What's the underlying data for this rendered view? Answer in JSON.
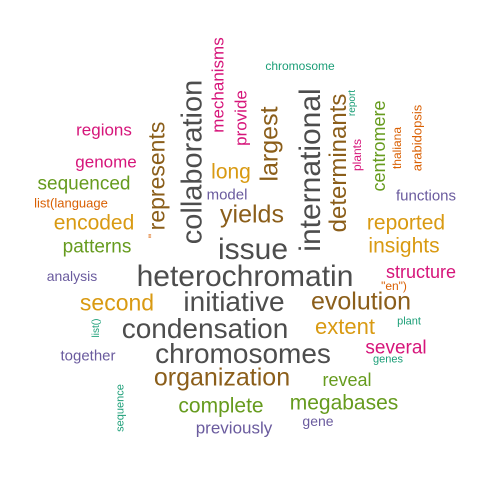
{
  "colors": {
    "dark": "#4d4d4d",
    "brown": "#8b5e1a",
    "olive": "#669b1e",
    "purple": "#6a5b9e",
    "magenta": "#d6157a",
    "orange": "#d99a12",
    "teal": "#1b9e77",
    "rust": "#d95f02"
  },
  "words": [
    {
      "text": "heterochromatin",
      "color": "dark"
    },
    {
      "text": "condensation",
      "color": "dark"
    },
    {
      "text": "chromosomes",
      "color": "dark"
    },
    {
      "text": "initiative",
      "color": "dark"
    },
    {
      "text": "issue",
      "color": "dark"
    },
    {
      "text": "collaboration",
      "color": "dark"
    },
    {
      "text": "international",
      "color": "dark"
    },
    {
      "text": "organization",
      "color": "brown"
    },
    {
      "text": "evolution",
      "color": "brown"
    },
    {
      "text": "determinants",
      "color": "brown"
    },
    {
      "text": "largest",
      "color": "brown"
    },
    {
      "text": "yields",
      "color": "brown"
    },
    {
      "text": "represents",
      "color": "brown"
    },
    {
      "text": "second",
      "color": "orange"
    },
    {
      "text": "extent",
      "color": "orange"
    },
    {
      "text": "reported",
      "color": "orange"
    },
    {
      "text": "insights",
      "color": "orange"
    },
    {
      "text": "encoded",
      "color": "orange"
    },
    {
      "text": "long",
      "color": "orange"
    },
    {
      "text": "complete",
      "color": "olive"
    },
    {
      "text": "megabases",
      "color": "olive"
    },
    {
      "text": "reveal",
      "color": "olive"
    },
    {
      "text": "patterns",
      "color": "olive"
    },
    {
      "text": "sequenced",
      "color": "olive"
    },
    {
      "text": "centromere",
      "color": "olive"
    },
    {
      "text": "several",
      "color": "magenta"
    },
    {
      "text": "structure",
      "color": "magenta"
    },
    {
      "text": "regions",
      "color": "magenta"
    },
    {
      "text": "genome",
      "color": "magenta"
    },
    {
      "text": "mechanisms",
      "color": "magenta"
    },
    {
      "text": "provide",
      "color": "magenta"
    },
    {
      "text": "plants",
      "color": "magenta"
    },
    {
      "text": "previously",
      "color": "purple"
    },
    {
      "text": "together",
      "color": "purple"
    },
    {
      "text": "analysis",
      "color": "purple"
    },
    {
      "text": "model",
      "color": "purple"
    },
    {
      "text": "functions",
      "color": "purple"
    },
    {
      "text": "gene",
      "color": "purple"
    },
    {
      "text": "chromosome",
      "color": "teal"
    },
    {
      "text": "report",
      "color": "teal"
    },
    {
      "text": "plant",
      "color": "teal"
    },
    {
      "text": "genes",
      "color": "teal"
    },
    {
      "text": "sequence",
      "color": "teal"
    },
    {
      "text": "list()",
      "color": "teal"
    },
    {
      "text": "list(language",
      "color": "rust"
    },
    {
      "text": "thaliana",
      "color": "rust"
    },
    {
      "text": "arabidopsis",
      "color": "rust"
    },
    {
      "text": "\"en\")",
      "color": "rust"
    },
    {
      "text": "\"",
      "color": "rust"
    }
  ]
}
